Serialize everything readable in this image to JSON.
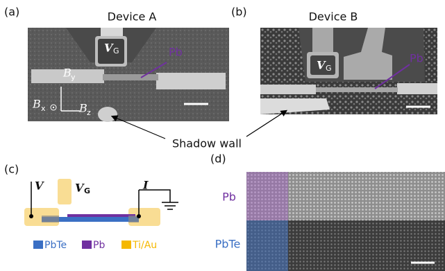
{
  "panels": [
    {
      "label": "(a)",
      "title": "Device A",
      "gate": {
        "main": "V",
        "sub": "G"
      },
      "material": "Pb",
      "axes": [
        {
          "main": "B",
          "sub": "y"
        },
        {
          "main": "B",
          "sub": "x"
        },
        {
          "main": "B",
          "sub": "z"
        }
      ]
    },
    {
      "label": "(b)",
      "title": "Device B",
      "gate": {
        "main": "V",
        "sub": "G"
      },
      "material": "Pb"
    }
  ],
  "annotation": "Shadow wall",
  "schematic": {
    "label": "(c)",
    "voltage": "V",
    "gate": {
      "main": "V",
      "sub": "G"
    },
    "current": "I",
    "legend": [
      "PbTe",
      "Pb",
      "Ti/Au"
    ]
  },
  "tem": {
    "label": "(d)",
    "layers": [
      "Pb",
      "PbTe"
    ]
  }
}
